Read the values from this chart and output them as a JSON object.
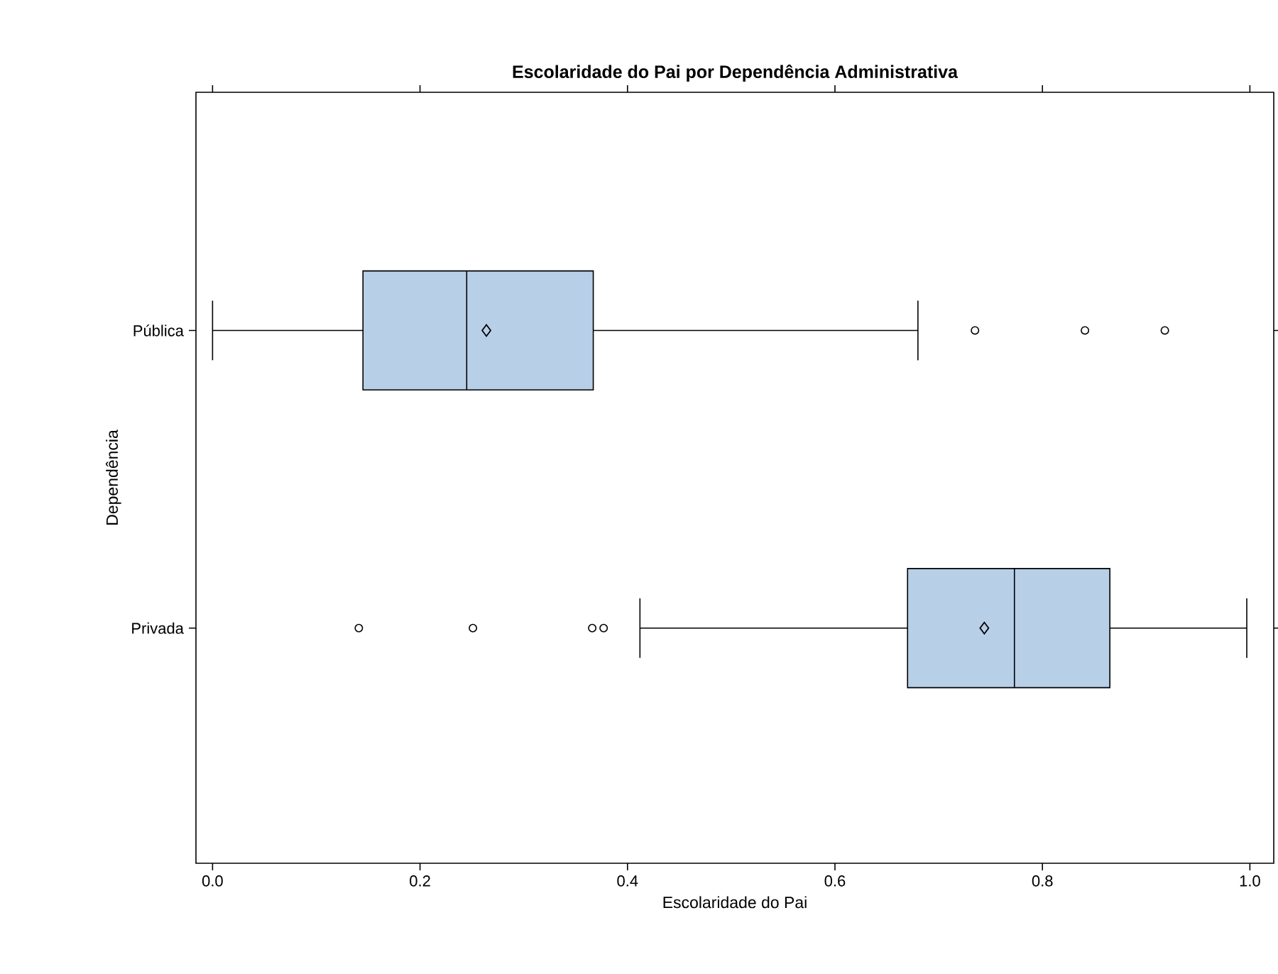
{
  "chart_data": {
    "type": "box",
    "orientation": "horizontal",
    "title": "Escolaridade do Pai por Dependência Administrativa",
    "xlabel": "Escolaridade do Pai",
    "ylabel": "Dependência",
    "categories": [
      "Pública",
      "Privada"
    ],
    "color": "#b8cfe8",
    "boxes": [
      {
        "low": 0.0,
        "q1": 0.145,
        "median": 0.245,
        "q3": 0.367,
        "high": 0.68,
        "mean": 0.264,
        "outliers": [
          0.735,
          0.841,
          0.918
        ]
      },
      {
        "low": 0.412,
        "q1": 0.67,
        "median": 0.773,
        "q3": 0.865,
        "high": 0.997,
        "mean": 0.744,
        "outliers": [
          0.141,
          0.251,
          0.366,
          0.377
        ]
      }
    ],
    "xlim": [
      -0.016,
      1.023
    ],
    "xticks": [
      {
        "value": 0,
        "label": "0.0"
      },
      0.2,
      0.4,
      0.6,
      0.8,
      {
        "value": 1,
        "label": "1.0"
      }
    ]
  }
}
